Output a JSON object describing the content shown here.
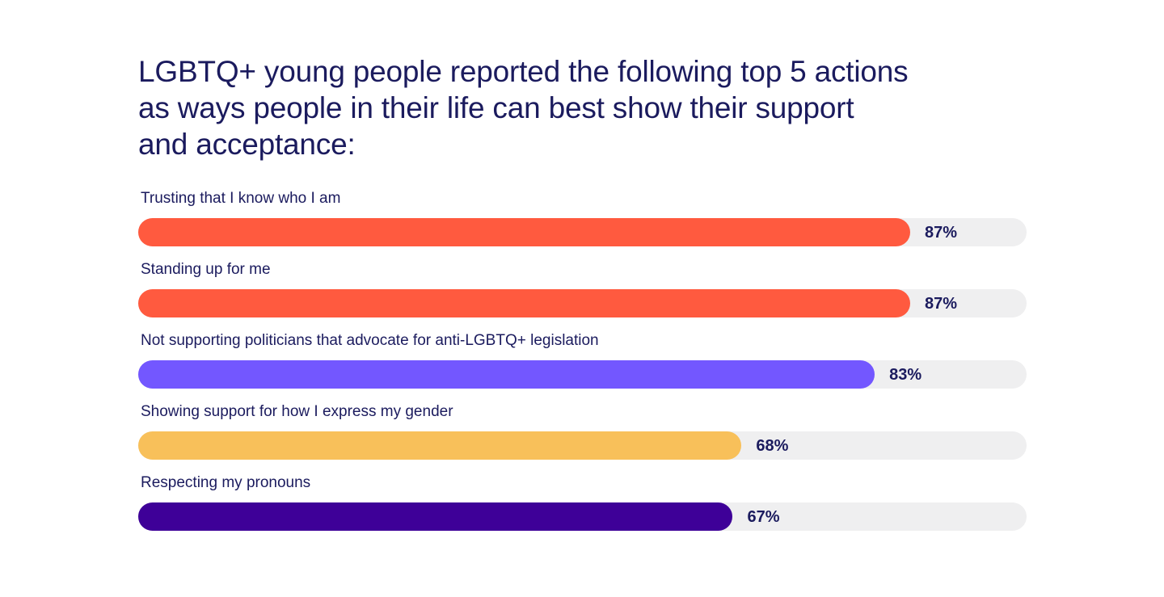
{
  "chart_data": {
    "type": "bar",
    "orientation": "horizontal",
    "title": "LGBTQ+ young people reported the following top 5 actions as ways people in their life can best show their support and acceptance:",
    "title_lines": [
      "LGBTQ+ young people reported the following top 5 actions",
      "as ways people in their life can best show their support",
      "and acceptance:"
    ],
    "categories": [
      "Trusting that I know who I am",
      "Standing up for me",
      "Not supporting politicians that advocate for anti-LGBTQ+ legislation",
      "Showing support for how I express my gender",
      "Respecting my pronouns"
    ],
    "values": [
      87,
      87,
      83,
      68,
      67
    ],
    "value_labels": [
      "87%",
      "87%",
      "83%",
      "68%",
      "67%"
    ],
    "colors": [
      "#ff5a3f",
      "#ff5a3f",
      "#7357ff",
      "#f8c05a",
      "#3e0098"
    ],
    "xlim": [
      0,
      100
    ],
    "unit": "%",
    "xlabel": "",
    "ylabel": "",
    "grid": false
  },
  "theme": {
    "text_color": "#1b1b5e",
    "track_color": "#efeff0"
  }
}
